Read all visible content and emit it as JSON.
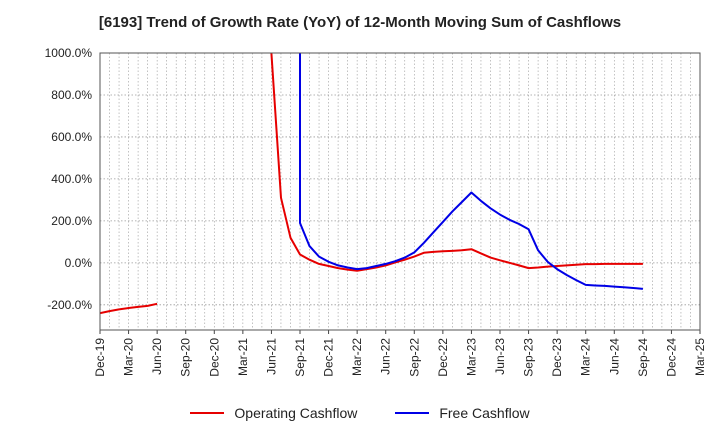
{
  "chart_data": {
    "type": "line",
    "title": "[6193]  Trend of Growth Rate (YoY) of 12-Month Moving Sum of Cashflows",
    "xlabel": "",
    "ylabel": "",
    "x_tick_labels": [
      "Dec-19",
      "Mar-20",
      "Jun-20",
      "Sep-20",
      "Dec-20",
      "Mar-21",
      "Jun-21",
      "Sep-21",
      "Dec-21",
      "Mar-22",
      "Jun-22",
      "Sep-22",
      "Dec-22",
      "Mar-23",
      "Jun-23",
      "Sep-23",
      "Dec-23",
      "Mar-24",
      "Jun-24",
      "Sep-24",
      "Dec-24",
      "Mar-25"
    ],
    "y_tick_labels": [
      "1000.0%",
      "800.0%",
      "600.0%",
      "400.0%",
      "200.0%",
      "0.0%",
      "-200.0%"
    ],
    "y_ticks": [
      1000,
      800,
      600,
      400,
      200,
      0,
      -200
    ],
    "ylim": [
      -320,
      1000
    ],
    "grid": true,
    "legend_position": "bottom",
    "series": [
      {
        "name": "Operating Cashflow",
        "color": "#e60000",
        "points": [
          [
            "Dec-19",
            -240
          ],
          [
            "Jan-20",
            -230
          ],
          [
            "Feb-20",
            -222
          ],
          [
            "Mar-20",
            -215
          ],
          [
            "Apr-20",
            -210
          ],
          [
            "May-20",
            -205
          ],
          [
            "Jun-20",
            -195
          ],
          [
            "Jun-21",
            1000
          ],
          [
            "Jul-21",
            310
          ],
          [
            "Aug-21",
            120
          ],
          [
            "Sep-21",
            40
          ],
          [
            "Oct-21",
            15
          ],
          [
            "Nov-21",
            -5
          ],
          [
            "Dec-21",
            -15
          ],
          [
            "Jan-22",
            -25
          ],
          [
            "Feb-22",
            -32
          ],
          [
            "Mar-22",
            -38
          ],
          [
            "Apr-22",
            -30
          ],
          [
            "May-22",
            -22
          ],
          [
            "Jun-22",
            -12
          ],
          [
            "Jul-22",
            2
          ],
          [
            "Aug-22",
            15
          ],
          [
            "Sep-22",
            30
          ],
          [
            "Oct-22",
            48
          ],
          [
            "Nov-22",
            52
          ],
          [
            "Dec-22",
            55
          ],
          [
            "Jan-23",
            57
          ],
          [
            "Feb-23",
            60
          ],
          [
            "Mar-23",
            65
          ],
          [
            "Apr-23",
            45
          ],
          [
            "May-23",
            25
          ],
          [
            "Jun-23",
            12
          ],
          [
            "Jul-23",
            0
          ],
          [
            "Aug-23",
            -12
          ],
          [
            "Sep-23",
            -25
          ],
          [
            "Oct-23",
            -22
          ],
          [
            "Nov-23",
            -18
          ],
          [
            "Dec-23",
            -15
          ],
          [
            "Jan-24",
            -12
          ],
          [
            "Feb-24",
            -9
          ],
          [
            "Mar-24",
            -6
          ],
          [
            "Apr-24",
            -6
          ],
          [
            "May-24",
            -5
          ],
          [
            "Jun-24",
            -5
          ],
          [
            "Jul-24",
            -5
          ],
          [
            "Aug-24",
            -5
          ],
          [
            "Sep-24",
            -5
          ]
        ]
      },
      {
        "name": "Free Cashflow",
        "color": "#0000e6",
        "points": [
          [
            "Sep-21",
            1000
          ],
          [
            "Sep-21",
            190
          ],
          [
            "Oct-21",
            80
          ],
          [
            "Nov-21",
            30
          ],
          [
            "Dec-21",
            5
          ],
          [
            "Jan-22",
            -12
          ],
          [
            "Feb-22",
            -22
          ],
          [
            "Mar-22",
            -30
          ],
          [
            "Apr-22",
            -25
          ],
          [
            "May-22",
            -15
          ],
          [
            "Jun-22",
            -5
          ],
          [
            "Jul-22",
            8
          ],
          [
            "Aug-22",
            25
          ],
          [
            "Sep-22",
            50
          ],
          [
            "Oct-22",
            95
          ],
          [
            "Nov-22",
            145
          ],
          [
            "Dec-22",
            195
          ],
          [
            "Jan-23",
            245
          ],
          [
            "Feb-23",
            290
          ],
          [
            "Mar-23",
            335
          ],
          [
            "Apr-23",
            295
          ],
          [
            "May-23",
            260
          ],
          [
            "Jun-23",
            230
          ],
          [
            "Jul-23",
            205
          ],
          [
            "Aug-23",
            185
          ],
          [
            "Sep-23",
            160
          ],
          [
            "Oct-23",
            60
          ],
          [
            "Nov-23",
            5
          ],
          [
            "Dec-23",
            -30
          ],
          [
            "Jan-24",
            -58
          ],
          [
            "Feb-24",
            -82
          ],
          [
            "Mar-24",
            -105
          ],
          [
            "Apr-24",
            -108
          ],
          [
            "May-24",
            -110
          ],
          [
            "Jun-24",
            -113
          ],
          [
            "Jul-24",
            -116
          ],
          [
            "Aug-24",
            -120
          ],
          [
            "Sep-24",
            -124
          ]
        ]
      }
    ]
  }
}
